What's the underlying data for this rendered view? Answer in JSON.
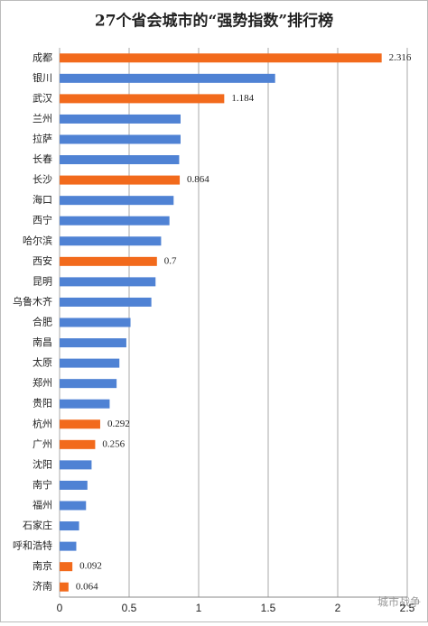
{
  "chart_data": {
    "type": "bar",
    "orientation": "horizontal",
    "title": "27个省会城市的“强势指数”排行榜",
    "categories": [
      "成都",
      "银川",
      "武汉",
      "兰州",
      "拉萨",
      "长春",
      "长沙",
      "海口",
      "西宁",
      "哈尔滨",
      "西安",
      "昆明",
      "乌鲁木齐",
      "合肥",
      "南昌",
      "太原",
      "郑州",
      "贵阳",
      "杭州",
      "广州",
      "沈阳",
      "南宁",
      "福州",
      "石家庄",
      "呼和浩特",
      "南京",
      "济南"
    ],
    "values": [
      2.316,
      1.55,
      1.184,
      0.87,
      0.87,
      0.86,
      0.864,
      0.82,
      0.79,
      0.73,
      0.7,
      0.69,
      0.66,
      0.51,
      0.48,
      0.43,
      0.41,
      0.36,
      0.292,
      0.256,
      0.23,
      0.2,
      0.19,
      0.14,
      0.12,
      0.092,
      0.064
    ],
    "highlight": [
      true,
      false,
      true,
      false,
      false,
      false,
      true,
      false,
      false,
      false,
      true,
      false,
      false,
      false,
      false,
      false,
      false,
      false,
      true,
      true,
      false,
      false,
      false,
      false,
      false,
      true,
      true
    ],
    "color": "#4f82d4",
    "highlight_color": "#f26a1c",
    "xlim": [
      0,
      2.5
    ],
    "xticks": [
      0,
      0.5,
      1,
      1.5,
      2,
      2.5
    ],
    "grid": true,
    "watermark": "城市战争"
  }
}
